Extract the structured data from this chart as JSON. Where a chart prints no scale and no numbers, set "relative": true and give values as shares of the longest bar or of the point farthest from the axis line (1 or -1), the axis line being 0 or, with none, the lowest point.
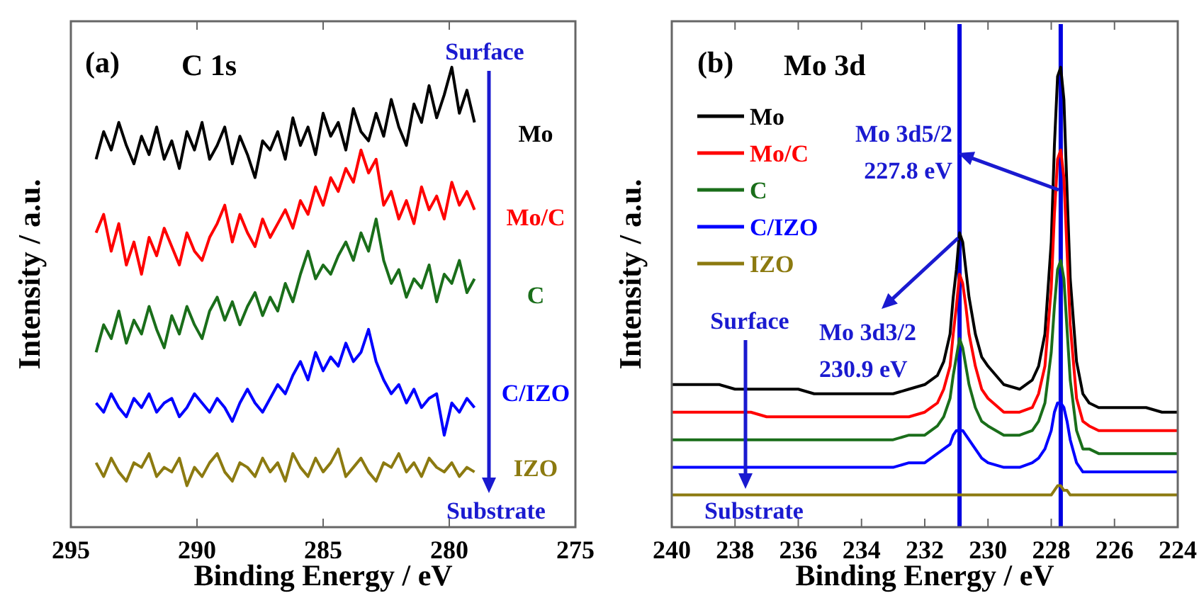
{
  "chart_data": [
    {
      "type": "line",
      "title": "(a)",
      "subtitle": "C 1s",
      "xlabel": "Binding Energy / eV",
      "ylabel": "Intensity / a.u.",
      "relative": true,
      "legend": false,
      "grid": false,
      "xlim": [
        295,
        275
      ],
      "xticks": [
        295,
        290,
        285,
        280,
        275
      ],
      "x": [
        294,
        293.7,
        293.4,
        293.1,
        292.8,
        292.5,
        292.2,
        291.9,
        291.6,
        291.3,
        291,
        290.7,
        290.4,
        290.1,
        289.8,
        289.5,
        289.2,
        288.9,
        288.6,
        288.3,
        288,
        287.7,
        287.4,
        287.1,
        286.8,
        286.5,
        286.2,
        285.9,
        285.6,
        285.3,
        285,
        284.7,
        284.4,
        284.1,
        283.8,
        283.5,
        283.2,
        282.9,
        282.6,
        282.3,
        282,
        281.7,
        281.4,
        281.1,
        280.8,
        280.5,
        280.2,
        279.9,
        279.6,
        279.3,
        279
      ],
      "annotations": [
        "Surface",
        "Substrate"
      ],
      "series": [
        {
          "name": "Mo",
          "color": "#000000",
          "values": [
            0.8,
            0.86,
            0.82,
            0.88,
            0.83,
            0.79,
            0.85,
            0.81,
            0.87,
            0.8,
            0.84,
            0.78,
            0.86,
            0.82,
            0.88,
            0.8,
            0.83,
            0.87,
            0.79,
            0.85,
            0.81,
            0.76,
            0.84,
            0.82,
            0.86,
            0.8,
            0.89,
            0.83,
            0.87,
            0.81,
            0.9,
            0.85,
            0.88,
            0.82,
            0.91,
            0.86,
            0.84,
            0.9,
            0.85,
            0.93,
            0.87,
            0.83,
            0.92,
            0.88,
            0.96,
            0.89,
            0.94,
            1.0,
            0.9,
            0.95,
            0.88
          ]
        },
        {
          "name": "Mo/C",
          "color": "#ff0000",
          "values": [
            0.64,
            0.68,
            0.6,
            0.66,
            0.57,
            0.62,
            0.55,
            0.63,
            0.59,
            0.65,
            0.61,
            0.57,
            0.64,
            0.6,
            0.58,
            0.63,
            0.66,
            0.7,
            0.62,
            0.68,
            0.64,
            0.61,
            0.67,
            0.63,
            0.66,
            0.69,
            0.65,
            0.71,
            0.68,
            0.74,
            0.7,
            0.76,
            0.73,
            0.78,
            0.75,
            0.82,
            0.77,
            0.8,
            0.7,
            0.73,
            0.67,
            0.71,
            0.66,
            0.74,
            0.69,
            0.72,
            0.67,
            0.75,
            0.7,
            0.73,
            0.69
          ]
        },
        {
          "name": "C",
          "color": "#1a6e1a",
          "values": [
            0.38,
            0.44,
            0.41,
            0.47,
            0.4,
            0.45,
            0.42,
            0.48,
            0.43,
            0.39,
            0.46,
            0.42,
            0.48,
            0.44,
            0.41,
            0.47,
            0.5,
            0.45,
            0.49,
            0.44,
            0.48,
            0.51,
            0.46,
            0.5,
            0.47,
            0.53,
            0.49,
            0.55,
            0.6,
            0.54,
            0.57,
            0.55,
            0.59,
            0.62,
            0.58,
            0.64,
            0.6,
            0.67,
            0.58,
            0.53,
            0.56,
            0.5,
            0.54,
            0.52,
            0.57,
            0.49,
            0.55,
            0.53,
            0.58,
            0.51,
            0.54
          ]
        },
        {
          "name": "C/IZO",
          "color": "#0000ff",
          "values": [
            0.27,
            0.25,
            0.29,
            0.26,
            0.24,
            0.28,
            0.26,
            0.29,
            0.25,
            0.27,
            0.28,
            0.24,
            0.26,
            0.29,
            0.27,
            0.25,
            0.28,
            0.26,
            0.23,
            0.27,
            0.3,
            0.27,
            0.25,
            0.28,
            0.31,
            0.29,
            0.33,
            0.36,
            0.32,
            0.38,
            0.34,
            0.37,
            0.35,
            0.4,
            0.36,
            0.38,
            0.43,
            0.36,
            0.32,
            0.29,
            0.31,
            0.27,
            0.3,
            0.26,
            0.28,
            0.29,
            0.2,
            0.27,
            0.25,
            0.28,
            0.26
          ]
        },
        {
          "name": "IZO",
          "color": "#8c7a10",
          "values": [
            0.14,
            0.11,
            0.15,
            0.12,
            0.1,
            0.14,
            0.13,
            0.16,
            0.11,
            0.13,
            0.12,
            0.15,
            0.09,
            0.13,
            0.11,
            0.14,
            0.16,
            0.12,
            0.1,
            0.14,
            0.13,
            0.11,
            0.15,
            0.12,
            0.14,
            0.1,
            0.16,
            0.13,
            0.11,
            0.15,
            0.12,
            0.14,
            0.17,
            0.11,
            0.13,
            0.15,
            0.12,
            0.1,
            0.14,
            0.13,
            0.16,
            0.12,
            0.14,
            0.11,
            0.15,
            0.13,
            0.12,
            0.14,
            0.11,
            0.13,
            0.12
          ]
        }
      ]
    },
    {
      "type": "line",
      "title": "(b)",
      "subtitle": "Mo 3d",
      "xlabel": "Binding Energy / eV",
      "ylabel": "Intensity / a.u.",
      "relative": true,
      "legend": "top left",
      "grid": false,
      "xlim": [
        240,
        224
      ],
      "xticks": [
        240,
        238,
        236,
        234,
        232,
        230,
        228,
        226,
        224
      ],
      "x": [
        240,
        239.5,
        239,
        238.5,
        238,
        237.5,
        237,
        236.5,
        236,
        235.5,
        235,
        234.5,
        234,
        233.5,
        233,
        232.5,
        232,
        231.8,
        231.6,
        231.4,
        231.2,
        231.1,
        231,
        230.9,
        230.8,
        230.7,
        230.6,
        230.4,
        230.2,
        230,
        229.5,
        229,
        228.6,
        228.4,
        228.2,
        228,
        227.9,
        227.8,
        227.7,
        227.6,
        227.5,
        227.4,
        227.2,
        227,
        226.8,
        226.5,
        226,
        225.5,
        225,
        224.5,
        224
      ],
      "annotations": [
        "Surface",
        "Substrate",
        "Mo 3d5/2\n227.8 eV",
        "Mo 3d3/2\n230.9 eV"
      ],
      "ref_lines": [
        {
          "axis": "x",
          "value": 230.9,
          "color": "#0000e0"
        },
        {
          "axis": "x",
          "value": 227.7,
          "color": "#0000e0"
        }
      ],
      "series": [
        {
          "name": "Mo",
          "color": "#000000",
          "values": [
            0.31,
            0.31,
            0.31,
            0.31,
            0.3,
            0.3,
            0.3,
            0.3,
            0.3,
            0.29,
            0.29,
            0.29,
            0.29,
            0.29,
            0.29,
            0.3,
            0.31,
            0.32,
            0.33,
            0.36,
            0.42,
            0.5,
            0.56,
            0.64,
            0.62,
            0.56,
            0.5,
            0.42,
            0.37,
            0.35,
            0.31,
            0.3,
            0.32,
            0.35,
            0.42,
            0.62,
            0.83,
            0.98,
            1.0,
            0.93,
            0.73,
            0.54,
            0.36,
            0.29,
            0.27,
            0.26,
            0.26,
            0.26,
            0.26,
            0.25,
            0.25
          ]
        },
        {
          "name": "Mo/C",
          "color": "#ff0000",
          "values": [
            0.25,
            0.25,
            0.25,
            0.25,
            0.25,
            0.25,
            0.24,
            0.24,
            0.24,
            0.24,
            0.24,
            0.24,
            0.24,
            0.24,
            0.24,
            0.24,
            0.25,
            0.26,
            0.27,
            0.3,
            0.35,
            0.42,
            0.48,
            0.55,
            0.53,
            0.48,
            0.42,
            0.35,
            0.3,
            0.28,
            0.25,
            0.25,
            0.26,
            0.29,
            0.35,
            0.52,
            0.68,
            0.8,
            0.82,
            0.76,
            0.6,
            0.44,
            0.28,
            0.23,
            0.22,
            0.21,
            0.21,
            0.21,
            0.21,
            0.21,
            0.21
          ]
        },
        {
          "name": "C",
          "color": "#1a6e1a",
          "values": [
            0.19,
            0.19,
            0.19,
            0.19,
            0.19,
            0.19,
            0.19,
            0.19,
            0.19,
            0.19,
            0.19,
            0.19,
            0.19,
            0.19,
            0.19,
            0.2,
            0.2,
            0.21,
            0.22,
            0.24,
            0.28,
            0.33,
            0.37,
            0.41,
            0.39,
            0.35,
            0.31,
            0.26,
            0.23,
            0.22,
            0.2,
            0.2,
            0.21,
            0.23,
            0.27,
            0.38,
            0.48,
            0.56,
            0.58,
            0.54,
            0.43,
            0.32,
            0.21,
            0.17,
            0.17,
            0.16,
            0.16,
            0.16,
            0.16,
            0.16,
            0.16
          ]
        },
        {
          "name": "C/IZO",
          "color": "#0000ff",
          "values": [
            0.13,
            0.13,
            0.13,
            0.13,
            0.13,
            0.13,
            0.13,
            0.13,
            0.13,
            0.13,
            0.13,
            0.13,
            0.13,
            0.13,
            0.13,
            0.14,
            0.14,
            0.15,
            0.16,
            0.17,
            0.18,
            0.2,
            0.21,
            0.21,
            0.21,
            0.2,
            0.19,
            0.17,
            0.15,
            0.14,
            0.13,
            0.13,
            0.14,
            0.15,
            0.17,
            0.21,
            0.25,
            0.27,
            0.27,
            0.26,
            0.23,
            0.19,
            0.14,
            0.12,
            0.12,
            0.12,
            0.12,
            0.12,
            0.12,
            0.12,
            0.12
          ]
        },
        {
          "name": "IZO",
          "color": "#8c7a10",
          "values": [
            0.07,
            0.07,
            0.07,
            0.07,
            0.07,
            0.07,
            0.07,
            0.07,
            0.07,
            0.07,
            0.07,
            0.07,
            0.07,
            0.07,
            0.07,
            0.07,
            0.07,
            0.07,
            0.07,
            0.07,
            0.07,
            0.07,
            0.07,
            0.07,
            0.07,
            0.07,
            0.07,
            0.07,
            0.07,
            0.07,
            0.07,
            0.07,
            0.07,
            0.07,
            0.07,
            0.07,
            0.08,
            0.09,
            0.09,
            0.08,
            0.08,
            0.07,
            0.07,
            0.07,
            0.07,
            0.07,
            0.07,
            0.07,
            0.07,
            0.07,
            0.07
          ]
        }
      ]
    }
  ]
}
